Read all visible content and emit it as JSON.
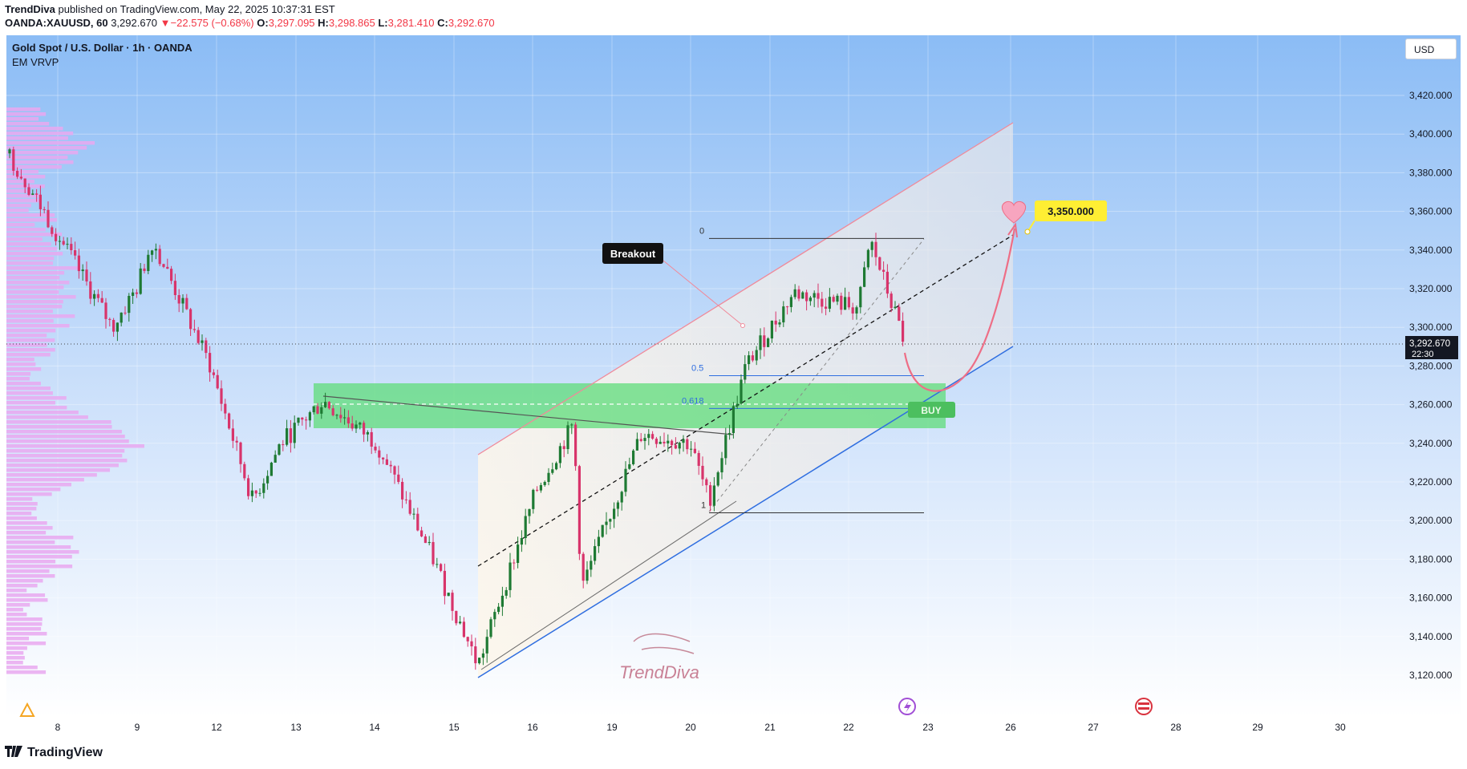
{
  "header": {
    "publisher": "TrendDiva",
    "published_text": "published on TradingView.com, May 22, 2025 10:37:31 EST",
    "symbol_line_prefix": "OANDA:XAUUSD, 60",
    "last": "3,292.670",
    "change": "−22.575 (−0.68%)",
    "o_label": "O:",
    "o": "3,297.095",
    "h_label": "H:",
    "h": "3,298.865",
    "l_label": "L:",
    "l": "3,281.410",
    "c_label": "C:",
    "c": "3,292.670"
  },
  "legend": {
    "title": "Gold Spot / U.S. Dollar · 1h · OANDA",
    "indicator": "EM VRVP"
  },
  "currency_button": "USD",
  "footer": {
    "brand": "TradingView"
  },
  "colors": {
    "bg_top": "#8bbcf5",
    "bg_bottom": "#ffffff",
    "up": "#1e7a33",
    "down": "#d8346b",
    "volume_profile": "#e9a8f0",
    "channel_upper": "#f08a9a",
    "channel_lower": "#2f6ee0",
    "buy_zone": "#5fdc7a",
    "breakout_label_bg": "#111111",
    "target_label_bg": "#ffee33"
  },
  "annotations": {
    "breakout": "Breakout",
    "target": "3,350.000",
    "buy": "BUY",
    "fib_0": "0",
    "fib_05": "0.5",
    "fib_0618": "0.618",
    "fib_1": "1",
    "watermark": "TrendDiva"
  },
  "price_label": {
    "price": "3,292.670",
    "countdown": "22:30"
  },
  "chart_data": {
    "type": "candlestick",
    "title": "Gold Spot / U.S. Dollar · 1h · OANDA",
    "ylim": [
      3110,
      3435
    ],
    "y_ticks": [
      "3,120.000",
      "3,140.000",
      "3,160.000",
      "3,180.000",
      "3,200.000",
      "3,220.000",
      "3,240.000",
      "3,260.000",
      "3,280.000",
      "3,300.000",
      "3,320.000",
      "3,340.000",
      "3,360.000",
      "3,380.000",
      "3,400.000",
      "3,420.000"
    ],
    "y_tick_values": [
      3120,
      3140,
      3160,
      3180,
      3200,
      3220,
      3240,
      3260,
      3280,
      3300,
      3320,
      3340,
      3360,
      3380,
      3400,
      3420
    ],
    "x_ticks": [
      "8",
      "9",
      "12",
      "13",
      "14",
      "15",
      "16",
      "19",
      "20",
      "21",
      "22",
      "23",
      "26",
      "27",
      "28",
      "29",
      "30"
    ],
    "current_price": 3292.67,
    "fib_levels": [
      {
        "level": "0",
        "price": 3346
      },
      {
        "level": "0.5",
        "price": 3275
      },
      {
        "level": "0.618",
        "price": 3258
      },
      {
        "level": "1",
        "price": 3204
      }
    ],
    "buy_zone": [
      3250,
      3271
    ],
    "target_price": 3350,
    "path_anchors": [
      {
        "x": "8",
        "y": 3390
      },
      {
        "x": "8",
        "y": 3370
      },
      {
        "x": "9",
        "y": 3300
      },
      {
        "x": "9",
        "y": 3320
      },
      {
        "x": "12",
        "y": 3345
      },
      {
        "x": "12",
        "y": 3280
      },
      {
        "x": "13",
        "y": 3210
      },
      {
        "x": "13",
        "y": 3240
      },
      {
        "x": "14",
        "y": 3262
      },
      {
        "x": "14",
        "y": 3240
      },
      {
        "x": "15",
        "y": 3180
      },
      {
        "x": "15",
        "y": 3125
      },
      {
        "x": "16",
        "y": 3215
      },
      {
        "x": "16",
        "y": 3250
      },
      {
        "x": "19",
        "y": 3165
      },
      {
        "x": "19",
        "y": 3245
      },
      {
        "x": "20",
        "y": 3240
      },
      {
        "x": "20",
        "y": 3210
      },
      {
        "x": "21",
        "y": 3280
      },
      {
        "x": "21",
        "y": 3318
      },
      {
        "x": "22",
        "y": 3310
      },
      {
        "x": "22",
        "y": 3345
      },
      {
        "x": "22",
        "y": 3292
      }
    ]
  }
}
